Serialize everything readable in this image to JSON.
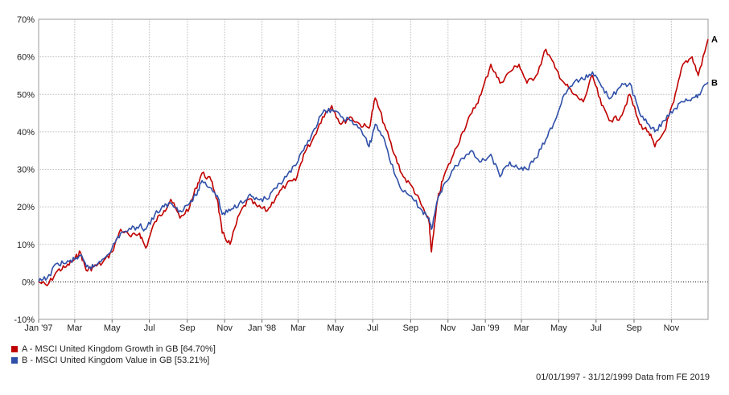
{
  "chart_data": {
    "type": "line",
    "x_range": [
      "1997-01-01",
      "1999-12-31"
    ],
    "ylim": [
      -10,
      70
    ],
    "yticks": [
      -10,
      0,
      10,
      20,
      30,
      40,
      50,
      60,
      70
    ],
    "ytick_labels": [
      "-10%",
      "0%",
      "10%",
      "20%",
      "30%",
      "40%",
      "50%",
      "60%",
      "70%"
    ],
    "xticks": [
      {
        "date": "1997-01-01",
        "label": "Jan '97"
      },
      {
        "date": "1997-03-01",
        "label": "Mar"
      },
      {
        "date": "1997-05-01",
        "label": "May"
      },
      {
        "date": "1997-07-01",
        "label": "Jul"
      },
      {
        "date": "1997-09-01",
        "label": "Sep"
      },
      {
        "date": "1997-11-01",
        "label": "Nov"
      },
      {
        "date": "1998-01-01",
        "label": "Jan '98"
      },
      {
        "date": "1998-03-01",
        "label": "Mar"
      },
      {
        "date": "1998-05-01",
        "label": "May"
      },
      {
        "date": "1998-07-01",
        "label": "Jul"
      },
      {
        "date": "1998-09-01",
        "label": "Sep"
      },
      {
        "date": "1998-11-01",
        "label": "Nov"
      },
      {
        "date": "1999-01-01",
        "label": "Jan '99"
      },
      {
        "date": "1999-03-01",
        "label": "Mar"
      },
      {
        "date": "1999-05-01",
        "label": "May"
      },
      {
        "date": "1999-07-01",
        "label": "Jul"
      },
      {
        "date": "1999-09-01",
        "label": "Sep"
      },
      {
        "date": "1999-11-01",
        "label": "Nov"
      }
    ],
    "grid": true,
    "zero_line": "dotted",
    "legend_position": "bottom-left",
    "series": [
      {
        "name": "A - MSCI United Kingdom Growth in GB [64.70%]",
        "end_label": "A",
        "color": "#c00000",
        "points": [
          [
            "1997-01-01",
            0
          ],
          [
            "1997-01-15",
            -1
          ],
          [
            "1997-02-01",
            3
          ],
          [
            "1997-02-15",
            4
          ],
          [
            "1997-03-01",
            6
          ],
          [
            "1997-03-10",
            8
          ],
          [
            "1997-03-20",
            3
          ],
          [
            "1997-04-01",
            4
          ],
          [
            "1997-04-15",
            5
          ],
          [
            "1997-05-01",
            8
          ],
          [
            "1997-05-15",
            14
          ],
          [
            "1997-06-01",
            12
          ],
          [
            "1997-06-15",
            13
          ],
          [
            "1997-06-25",
            9
          ],
          [
            "1997-07-10",
            16
          ],
          [
            "1997-07-25",
            19
          ],
          [
            "1997-08-05",
            22
          ],
          [
            "1997-08-20",
            17
          ],
          [
            "1997-09-05",
            20
          ],
          [
            "1997-09-15",
            25
          ],
          [
            "1997-09-25",
            29
          ],
          [
            "1997-10-10",
            27
          ],
          [
            "1997-10-20",
            22
          ],
          [
            "1997-10-28",
            13
          ],
          [
            "1997-11-10",
            10
          ],
          [
            "1997-11-25",
            18
          ],
          [
            "1997-12-10",
            22
          ],
          [
            "1997-12-25",
            20
          ],
          [
            "1998-01-10",
            19
          ],
          [
            "1998-01-25",
            23
          ],
          [
            "1998-02-10",
            26
          ],
          [
            "1998-02-25",
            27
          ],
          [
            "1998-03-10",
            34
          ],
          [
            "1998-03-25",
            38
          ],
          [
            "1998-04-10",
            44
          ],
          [
            "1998-04-25",
            47
          ],
          [
            "1998-05-10",
            42
          ],
          [
            "1998-05-25",
            44
          ],
          [
            "1998-06-10",
            42
          ],
          [
            "1998-06-25",
            41
          ],
          [
            "1998-07-05",
            49
          ],
          [
            "1998-07-20",
            42
          ],
          [
            "1998-08-05",
            34
          ],
          [
            "1998-08-20",
            28
          ],
          [
            "1998-09-05",
            25
          ],
          [
            "1998-09-20",
            20
          ],
          [
            "1998-10-01",
            16
          ],
          [
            "1998-10-05",
            8
          ],
          [
            "1998-10-15",
            22
          ],
          [
            "1998-10-25",
            28
          ],
          [
            "1998-11-10",
            34
          ],
          [
            "1998-11-25",
            40
          ],
          [
            "1998-12-10",
            45
          ],
          [
            "1998-12-25",
            50
          ],
          [
            "1999-01-10",
            58
          ],
          [
            "1999-01-25",
            53
          ],
          [
            "1999-02-10",
            56
          ],
          [
            "1999-02-25",
            58
          ],
          [
            "1999-03-10",
            53
          ],
          [
            "1999-03-25",
            55
          ],
          [
            "1999-04-10",
            62
          ],
          [
            "1999-04-25",
            57
          ],
          [
            "1999-05-10",
            53
          ],
          [
            "1999-05-25",
            50
          ],
          [
            "1999-06-10",
            48
          ],
          [
            "1999-06-25",
            55
          ],
          [
            "1999-07-10",
            47
          ],
          [
            "1999-07-25",
            43
          ],
          [
            "1999-08-10",
            44
          ],
          [
            "1999-08-25",
            50
          ],
          [
            "1999-09-10",
            42
          ],
          [
            "1999-09-25",
            40
          ],
          [
            "1999-10-05",
            36
          ],
          [
            "1999-10-20",
            40
          ],
          [
            "1999-11-05",
            48
          ],
          [
            "1999-11-20",
            58
          ],
          [
            "1999-12-05",
            60
          ],
          [
            "1999-12-15",
            55
          ],
          [
            "1999-12-31",
            64.7
          ]
        ]
      },
      {
        "name": "B - MSCI United Kingdom Value in GB [53.21%]",
        "end_label": "B",
        "color": "#2f4fa8",
        "points": [
          [
            "1997-01-01",
            0
          ],
          [
            "1997-01-15",
            1
          ],
          [
            "1997-02-01",
            5
          ],
          [
            "1997-02-15",
            5
          ],
          [
            "1997-03-01",
            6
          ],
          [
            "1997-03-10",
            7
          ],
          [
            "1997-03-20",
            4
          ],
          [
            "1997-04-01",
            4
          ],
          [
            "1997-04-15",
            6
          ],
          [
            "1997-05-01",
            9
          ],
          [
            "1997-05-15",
            13
          ],
          [
            "1997-06-01",
            14
          ],
          [
            "1997-06-15",
            15
          ],
          [
            "1997-06-25",
            14
          ],
          [
            "1997-07-10",
            18
          ],
          [
            "1997-07-25",
            20
          ],
          [
            "1997-08-05",
            21
          ],
          [
            "1997-08-20",
            19
          ],
          [
            "1997-09-05",
            21
          ],
          [
            "1997-09-15",
            23
          ],
          [
            "1997-09-25",
            27
          ],
          [
            "1997-10-10",
            25
          ],
          [
            "1997-10-20",
            23
          ],
          [
            "1997-10-28",
            18
          ],
          [
            "1997-11-10",
            19
          ],
          [
            "1997-11-25",
            21
          ],
          [
            "1997-12-10",
            23
          ],
          [
            "1997-12-25",
            22
          ],
          [
            "1998-01-10",
            22
          ],
          [
            "1998-01-25",
            25
          ],
          [
            "1998-02-10",
            28
          ],
          [
            "1998-02-25",
            31
          ],
          [
            "1998-03-10",
            35
          ],
          [
            "1998-03-25",
            40
          ],
          [
            "1998-04-10",
            45
          ],
          [
            "1998-04-25",
            46
          ],
          [
            "1998-05-10",
            44
          ],
          [
            "1998-05-25",
            43
          ],
          [
            "1998-06-10",
            41
          ],
          [
            "1998-06-25",
            36
          ],
          [
            "1998-07-05",
            42
          ],
          [
            "1998-07-20",
            38
          ],
          [
            "1998-08-05",
            29
          ],
          [
            "1998-08-20",
            24
          ],
          [
            "1998-09-05",
            22
          ],
          [
            "1998-09-20",
            19
          ],
          [
            "1998-10-01",
            17
          ],
          [
            "1998-10-05",
            14
          ],
          [
            "1998-10-15",
            22
          ],
          [
            "1998-10-25",
            26
          ],
          [
            "1998-11-10",
            30
          ],
          [
            "1998-11-25",
            33
          ],
          [
            "1998-12-10",
            35
          ],
          [
            "1998-12-25",
            32
          ],
          [
            "1999-01-10",
            34
          ],
          [
            "1999-01-25",
            28
          ],
          [
            "1999-02-10",
            32
          ],
          [
            "1999-02-25",
            30
          ],
          [
            "1999-03-10",
            30
          ],
          [
            "1999-03-25",
            33
          ],
          [
            "1999-04-10",
            38
          ],
          [
            "1999-04-25",
            43
          ],
          [
            "1999-05-10",
            50
          ],
          [
            "1999-05-25",
            53
          ],
          [
            "1999-06-10",
            54
          ],
          [
            "1999-06-25",
            56
          ],
          [
            "1999-07-10",
            52
          ],
          [
            "1999-07-25",
            49
          ],
          [
            "1999-08-10",
            52
          ],
          [
            "1999-08-25",
            53
          ],
          [
            "1999-09-10",
            45
          ],
          [
            "1999-09-25",
            42
          ],
          [
            "1999-10-05",
            40
          ],
          [
            "1999-10-20",
            43
          ],
          [
            "1999-11-05",
            46
          ],
          [
            "1999-11-20",
            48
          ],
          [
            "1999-12-05",
            49
          ],
          [
            "1999-12-15",
            50
          ],
          [
            "1999-12-31",
            53.21
          ]
        ]
      }
    ]
  },
  "legend": {
    "items": [
      {
        "label": "A - MSCI United Kingdom Growth in GB [64.70%]",
        "color": "#c00000"
      },
      {
        "label": "B - MSCI United Kingdom Value in GB [53.21%]",
        "color": "#2f4fa8"
      }
    ]
  },
  "credit": "01/01/1997 - 31/12/1999 Data from FE 2019"
}
